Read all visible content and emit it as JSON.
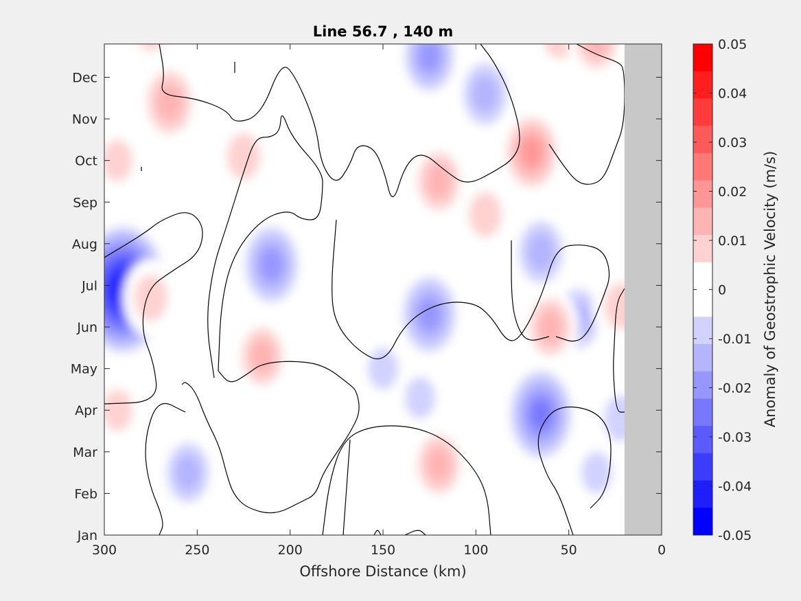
{
  "chart_data": {
    "type": "heatmap",
    "title": "Line 56.7 , 140 m",
    "xlabel": "Offshore Distance (km)",
    "ylabel": "",
    "xlim": [
      300,
      0
    ],
    "x_reversed": true,
    "x_ticks": [
      300,
      250,
      200,
      150,
      100,
      50,
      0
    ],
    "x_tick_labels": [
      "300",
      "250",
      "200",
      "150",
      "100",
      "50",
      "0"
    ],
    "y_tick_labels": [
      "Jan",
      "Feb",
      "Mar",
      "Apr",
      "May",
      "Jun",
      "Jul",
      "Aug",
      "Sep",
      "Oct",
      "Nov",
      "Dec"
    ],
    "no_data_region_km": [
      0,
      20
    ],
    "no_data_color": "#c8c8c8",
    "zero_contour_color": "#000000",
    "colorbar": {
      "label": "Anomaly of Geostrophic Velocity (m/s)",
      "clim": [
        -0.05,
        0.05
      ],
      "tick_values": [
        0.05,
        0.04,
        0.03,
        0.02,
        0.01,
        0,
        -0.01,
        -0.02,
        -0.03,
        -0.04,
        -0.05
      ],
      "tick_labels": [
        "0.05",
        "0.04",
        "0.03",
        "0.02",
        "0.01",
        "0",
        "-0.01",
        "-0.02",
        "-0.03",
        "-0.04",
        "-0.05"
      ],
      "colors": [
        "#ff0000",
        "#ff1e1e",
        "#ff3c3c",
        "#ff5a5a",
        "#ff7878",
        "#ff9696",
        "#ffb4b4",
        "#ffd2d2",
        "#ffffff",
        "#ffffff",
        "#d2d2ff",
        "#b4b4ff",
        "#9696ff",
        "#7878ff",
        "#5a5aff",
        "#3c3cff",
        "#1e1eff",
        "#0000ff"
      ]
    },
    "anomaly_features": [
      {
        "x_km": 290,
        "month": 5.9,
        "value": -0.045
      },
      {
        "x_km": 275,
        "month": 12.2,
        "value": 0.012
      },
      {
        "x_km": 255,
        "month": 12.9,
        "value": -0.01
      },
      {
        "x_km": 265,
        "month": 10.4,
        "value": 0.017
      },
      {
        "x_km": 293,
        "month": 9.0,
        "value": 0.008
      },
      {
        "x_km": 293,
        "month": 3.0,
        "value": 0.008
      },
      {
        "x_km": 255,
        "month": 1.5,
        "value": -0.015
      },
      {
        "x_km": 275,
        "month": 5.7,
        "value": 0.012
      },
      {
        "x_km": 210,
        "month": 6.5,
        "value": -0.022
      },
      {
        "x_km": 215,
        "month": 4.3,
        "value": 0.013
      },
      {
        "x_km": 225,
        "month": 9.1,
        "value": 0.012
      },
      {
        "x_km": 155,
        "month": 12.5,
        "value": -0.01
      },
      {
        "x_km": 125,
        "month": 11.5,
        "value": -0.018
      },
      {
        "x_km": 95,
        "month": 10.6,
        "value": -0.017
      },
      {
        "x_km": 160,
        "month": 9.5,
        "value": 0.007
      },
      {
        "x_km": 120,
        "month": 8.5,
        "value": 0.014
      },
      {
        "x_km": 125,
        "month": 5.3,
        "value": -0.022
      },
      {
        "x_km": 150,
        "month": 4.0,
        "value": -0.008
      },
      {
        "x_km": 120,
        "month": 1.7,
        "value": 0.014
      },
      {
        "x_km": 130,
        "month": 3.3,
        "value": -0.008
      },
      {
        "x_km": 70,
        "month": 9.2,
        "value": 0.018
      },
      {
        "x_km": 65,
        "month": 2.9,
        "value": -0.027
      },
      {
        "x_km": 65,
        "month": 6.8,
        "value": -0.017
      },
      {
        "x_km": 55,
        "month": 12.0,
        "value": 0.011
      },
      {
        "x_km": 35,
        "month": 11.9,
        "value": 0.013
      },
      {
        "x_km": 45,
        "month": 5.2,
        "value": -0.015
      },
      {
        "x_km": 60,
        "month": 5.0,
        "value": 0.013
      },
      {
        "x_km": 95,
        "month": 7.7,
        "value": 0.011
      },
      {
        "x_km": 175,
        "month": 6.0,
        "value": 0.006
      },
      {
        "x_km": 22,
        "month": 5.5,
        "value": 0.012
      },
      {
        "x_km": 22,
        "month": 2.8,
        "value": -0.012
      },
      {
        "x_km": 35,
        "month": 1.5,
        "value": -0.008
      }
    ]
  }
}
